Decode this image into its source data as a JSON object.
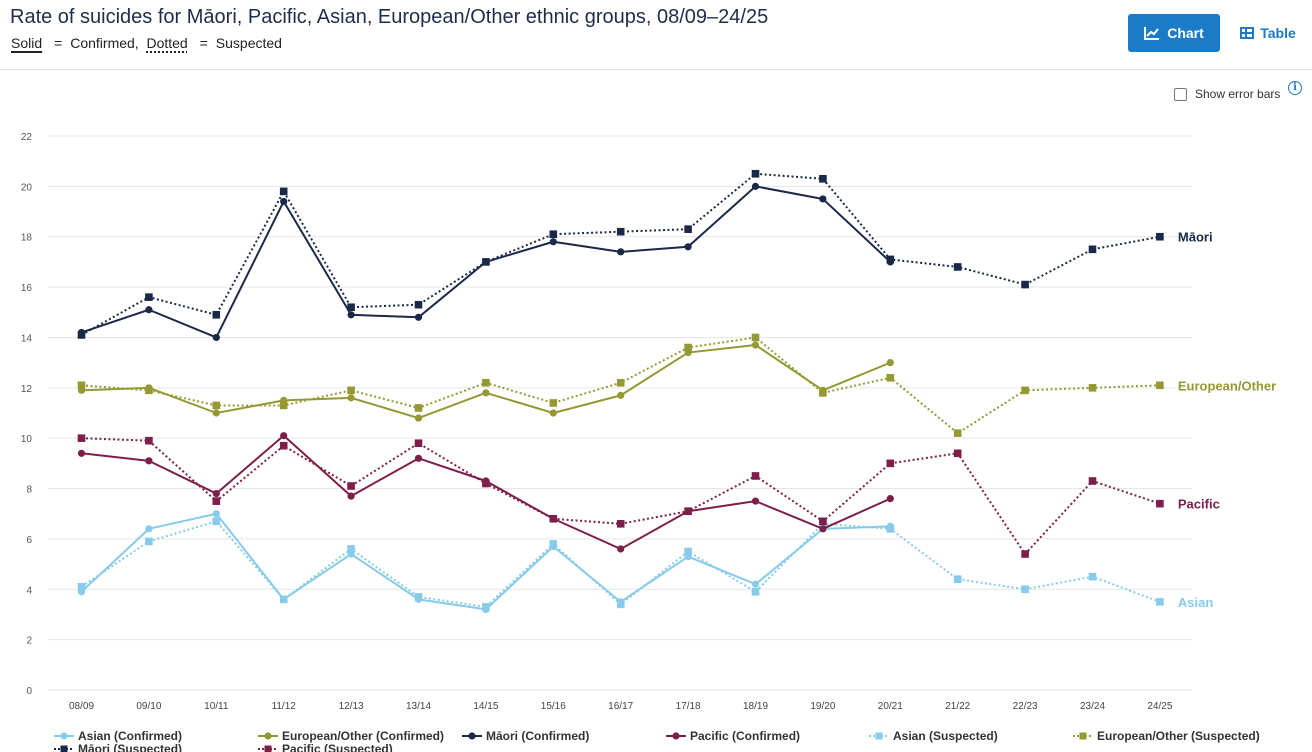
{
  "header": {
    "title": "Rate of suicides for Māori, Pacific, Asian, European/Other ethnic groups, 08/09–24/25",
    "solid_word": "Solid",
    "eq1": "=",
    "confirmed_text": "Confirmed,",
    "dotted_word": "Dotted",
    "eq2": "=",
    "suspected_text": "Suspected"
  },
  "controls": {
    "chart_label": "Chart",
    "table_label": "Table",
    "info_glyph": "i",
    "error_bars_label": "Show error bars"
  },
  "chart_data": {
    "type": "line",
    "title": "Rate of suicides for Māori, Pacific, Asian, European/Other ethnic groups, 08/09–24/25",
    "xlabel": "",
    "ylabel": "",
    "categories": [
      "08/09",
      "09/10",
      "10/11",
      "11/12",
      "12/13",
      "13/14",
      "14/15",
      "15/16",
      "16/17",
      "17/18",
      "18/19",
      "19/20",
      "20/21",
      "21/22",
      "22/23",
      "23/24",
      "24/25"
    ],
    "ylim": [
      0,
      22
    ],
    "yticks": [
      0,
      2,
      4,
      6,
      8,
      10,
      12,
      14,
      16,
      18,
      20,
      22
    ],
    "grid": true,
    "legend_position": "bottom",
    "series": [
      {
        "name": "Asian (Confirmed)",
        "group": "Asian",
        "style": "solid",
        "marker": "circle",
        "color": "#86cbe9",
        "values": [
          3.9,
          6.4,
          7.0,
          3.6,
          5.4,
          3.6,
          3.2,
          5.7,
          3.5,
          5.3,
          4.2,
          6.4,
          6.5,
          null,
          null,
          null,
          null
        ]
      },
      {
        "name": "European/Other (Confirmed)",
        "group": "European/Other",
        "style": "solid",
        "marker": "circle",
        "color": "#969833",
        "values": [
          11.9,
          12.0,
          11.0,
          11.5,
          11.6,
          10.8,
          11.8,
          11.0,
          11.7,
          13.4,
          13.7,
          11.9,
          13.0,
          null,
          null,
          null,
          null
        ]
      },
      {
        "name": "Māori (Confirmed)",
        "group": "Māori",
        "style": "solid",
        "marker": "circle",
        "color": "#1b2948",
        "values": [
          14.2,
          15.1,
          14.0,
          19.4,
          14.9,
          14.8,
          17.0,
          17.8,
          17.4,
          17.6,
          20.0,
          19.5,
          17.0,
          null,
          null,
          null,
          null
        ]
      },
      {
        "name": "Pacific (Confirmed)",
        "group": "Pacific",
        "style": "solid",
        "marker": "circle",
        "color": "#7d1e4b",
        "values": [
          9.4,
          9.1,
          7.8,
          10.1,
          7.7,
          9.2,
          8.3,
          6.8,
          5.6,
          7.1,
          7.5,
          6.4,
          7.6,
          null,
          null,
          null,
          null
        ]
      },
      {
        "name": "Asian (Suspected)",
        "group": "Asian",
        "style": "dotted",
        "marker": "square",
        "color": "#86cbe9",
        "values": [
          4.1,
          5.9,
          6.7,
          3.6,
          5.6,
          3.7,
          3.3,
          5.8,
          3.4,
          5.5,
          3.9,
          6.6,
          6.4,
          4.4,
          4.0,
          4.5,
          3.5
        ]
      },
      {
        "name": "European/Other (Suspected)",
        "group": "European/Other",
        "style": "dotted",
        "marker": "square",
        "color": "#969833",
        "values": [
          12.1,
          11.9,
          11.3,
          11.3,
          11.9,
          11.2,
          12.2,
          11.4,
          12.2,
          13.6,
          14.0,
          11.8,
          12.4,
          10.2,
          11.9,
          12.0,
          12.1
        ]
      },
      {
        "name": "Māori (Suspected)",
        "group": "Māori",
        "style": "dotted",
        "marker": "square",
        "color": "#1b2948",
        "values": [
          14.1,
          15.6,
          14.9,
          19.8,
          15.2,
          15.3,
          17.0,
          18.1,
          18.2,
          18.3,
          20.5,
          20.3,
          17.1,
          16.8,
          16.1,
          17.5,
          18.0
        ]
      },
      {
        "name": "Pacific (Suspected)",
        "group": "Pacific",
        "style": "dotted",
        "marker": "square",
        "color": "#7d1e4b",
        "values": [
          10.0,
          9.9,
          7.5,
          9.7,
          8.1,
          9.8,
          8.2,
          6.8,
          6.6,
          7.1,
          8.5,
          6.7,
          9.0,
          9.4,
          5.4,
          8.3,
          7.4
        ]
      }
    ],
    "end_labels": [
      {
        "text": "Māori",
        "color": "#1b2948"
      },
      {
        "text": "European/Other",
        "color": "#969833"
      },
      {
        "text": "Pacific",
        "color": "#7d1e4b"
      },
      {
        "text": "Asian",
        "color": "#86cbe9"
      }
    ]
  }
}
